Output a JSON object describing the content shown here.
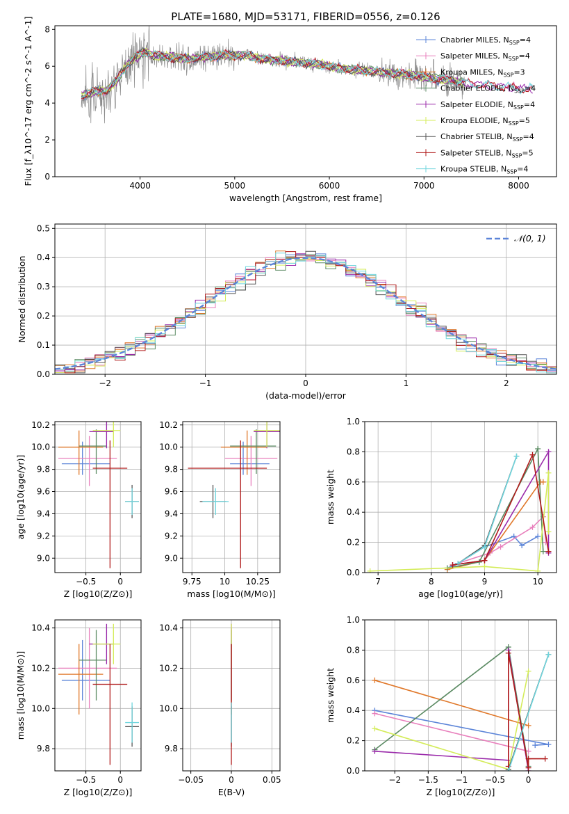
{
  "chart_data": [
    {
      "id": "spectrum",
      "type": "line",
      "title": "PLATE=1680, MJD=53171, FIBERID=0556, z=0.126",
      "xlabel": "wavelength [Angstrom, rest frame]",
      "ylabel": "Flux [f_λ10^-17 erg cm^-2 s^-1 A^-1]",
      "xlim": [
        3100,
        8400
      ],
      "ylim": [
        0,
        8.2
      ],
      "xticks": [
        4000,
        5000,
        6000,
        7000,
        8000
      ],
      "yticks": [
        0,
        2,
        4,
        6,
        8
      ],
      "grid": false,
      "legend_position": "top-right",
      "continuum_x": [
        3380,
        3500,
        3650,
        3750,
        3850,
        3950,
        4050,
        4150,
        4300,
        4500,
        4700,
        4900,
        5100,
        5300,
        5500,
        5700,
        5900,
        6100,
        6300,
        6500,
        6700,
        6900,
        7100,
        7300,
        7500,
        7700,
        7900,
        8100
      ],
      "continuum_y": [
        4.4,
        4.6,
        4.7,
        5.2,
        6.0,
        6.5,
        6.8,
        6.6,
        6.5,
        6.4,
        6.5,
        6.6,
        6.6,
        6.4,
        6.3,
        6.2,
        6.1,
        5.9,
        5.8,
        5.7,
        5.6,
        5.5,
        5.35,
        5.2,
        5.05,
        4.95,
        4.85,
        4.75
      ],
      "series": [
        {
          "name": "Chabrier MILES, N_SSP=4",
          "color": "#5b84d8"
        },
        {
          "name": "Salpeter MILES, N_SSP=4",
          "color": "#e87fbc"
        },
        {
          "name": "Kroupa MILES, N_SSP=3",
          "color": "#e0782a"
        },
        {
          "name": "Chabrier ELODIE, N_SSP=4",
          "color": "#5a8a62"
        },
        {
          "name": "Salpeter ELODIE, N_SSP=4",
          "color": "#9a2aaa"
        },
        {
          "name": "Kroupa ELODIE, N_SSP=5",
          "color": "#d4ec5a"
        },
        {
          "name": "Chabrier STELIB, N_SSP=4",
          "color": "#555555"
        },
        {
          "name": "Salpeter STELIB, N_SSP=5",
          "color": "#b01a1a"
        },
        {
          "name": "Kroupa STELIB, N_SSP=4",
          "color": "#6fd5dd"
        }
      ],
      "data_color": "#8a8a8a"
    },
    {
      "id": "residuals",
      "type": "line",
      "xlabel": "(data-model)/error",
      "ylabel": "Normed distribution",
      "xlim": [
        -2.5,
        2.5
      ],
      "ylim": [
        0,
        0.515
      ],
      "xticks": [
        -2,
        -1,
        0,
        1,
        2
      ],
      "yticks": [
        0.0,
        0.1,
        0.2,
        0.3,
        0.4,
        0.5
      ],
      "grid": true,
      "legend_position": "top-right",
      "reference": {
        "name": "𝒩(0, 1)",
        "color": "#5b84d8"
      },
      "bin_width": 0.1
    },
    {
      "id": "age-vs-Z",
      "type": "scatter",
      "xlabel": "Z [log10(Z/Z⊙)]",
      "ylabel": "age [log10(age/yr)]",
      "xlim": [
        -0.95,
        0.3
      ],
      "ylim": [
        8.87,
        10.23
      ],
      "xticks": [
        -0.5,
        0.0
      ],
      "yticks": [
        9.0,
        9.2,
        9.4,
        9.6,
        9.8,
        10.0,
        10.2
      ],
      "grid": true
    },
    {
      "id": "age-vs-mass",
      "type": "scatter",
      "xlabel": "mass [log10(M/M⊙)]",
      "ylabel": "",
      "xlim": [
        9.68,
        10.42
      ],
      "ylim": [
        8.87,
        10.23
      ],
      "xticks": [
        9.75,
        10.0,
        10.25
      ],
      "yticks": [
        9.0,
        9.2,
        9.4,
        9.6,
        9.8,
        10.0,
        10.2
      ],
      "grid": true
    },
    {
      "id": "weight-vs-age",
      "type": "line",
      "xlabel": "age [log10(age/yr)]",
      "ylabel": "mass weight",
      "xlim": [
        6.75,
        10.35
      ],
      "ylim": [
        0,
        1.0
      ],
      "xticks": [
        7,
        8,
        9,
        10
      ],
      "yticks": [
        0.0,
        0.2,
        0.4,
        0.6,
        0.8,
        1.0
      ],
      "grid": true
    },
    {
      "id": "mass-vs-Z",
      "type": "scatter",
      "xlabel": "Z [log10(Z/Z⊙)]",
      "ylabel": "mass [log10(M/M⊙)]",
      "xlim": [
        -0.95,
        0.3
      ],
      "ylim": [
        9.69,
        10.44
      ],
      "xticks": [
        -0.5,
        0.0
      ],
      "yticks": [
        9.8,
        10.0,
        10.2,
        10.4
      ],
      "grid": true
    },
    {
      "id": "mass-vs-ebv",
      "type": "scatter",
      "xlabel": "E(B-V)",
      "ylabel": "",
      "xlim": [
        -0.06,
        0.06
      ],
      "ylim": [
        9.69,
        10.44
      ],
      "xticks": [
        -0.05,
        0.0,
        0.05
      ],
      "yticks": [
        9.8,
        10.0,
        10.2,
        10.4
      ],
      "grid": true
    },
    {
      "id": "weight-vs-Z",
      "type": "line",
      "xlabel": "Z [log10(Z/Z⊙)]",
      "ylabel": "mass weight",
      "xlim": [
        -2.45,
        0.42
      ],
      "ylim": [
        0,
        1.0
      ],
      "xticks": [
        -2.0,
        -1.5,
        -1.0,
        -0.5,
        0.0
      ],
      "yticks": [
        0.0,
        0.2,
        0.4,
        0.6,
        0.8,
        1.0
      ],
      "grid": true
    }
  ],
  "fits": [
    {
      "color": "#5b84d8",
      "age": 9.85,
      "age_err": [
        0.1,
        0.2
      ],
      "Z": -0.55,
      "Z_err": [
        0.3,
        0.4
      ],
      "mass": 10.14,
      "mass_err": [
        0.1,
        0.2
      ],
      "ebv": 0.0,
      "w_age": [
        [
          8.3,
          0.03
        ],
        [
          8.5,
          0.06
        ],
        [
          9.0,
          0.17
        ],
        [
          9.55,
          0.24
        ],
        [
          9.7,
          0.18
        ],
        [
          10.0,
          0.24
        ]
      ],
      "w_Z": [
        [
          -2.3,
          0.4
        ],
        [
          0.3,
          0.175
        ],
        [
          0.1,
          0.17
        ]
      ]
    },
    {
      "color": "#e87fbc",
      "age": 9.9,
      "age_err": [
        0.25,
        0.2
      ],
      "Z": -0.45,
      "Z_err": [
        0.45,
        0.4
      ],
      "mass": 10.2,
      "mass_err": [
        0.2,
        0.2
      ],
      "ebv": 0.0,
      "w_age": [
        [
          8.4,
          0.05
        ],
        [
          9.1,
          0.13
        ],
        [
          9.3,
          0.17
        ],
        [
          9.9,
          0.3
        ],
        [
          10.1,
          0.37
        ],
        [
          10.15,
          0.2
        ]
      ],
      "w_Z": [
        [
          -2.3,
          0.38
        ],
        [
          0.0,
          0.13
        ]
      ]
    },
    {
      "color": "#e0782a",
      "age": 10.0,
      "age_err": [
        0.25,
        0.15
      ],
      "Z": -0.6,
      "Z_err": [
        0.3,
        0.35
      ],
      "mass": 10.17,
      "mass_err": [
        0.2,
        0.15
      ],
      "ebv": 0.0,
      "w_age": [
        [
          8.3,
          0.02
        ],
        [
          9.0,
          0.08
        ],
        [
          10.05,
          0.6
        ],
        [
          10.1,
          0.6
        ]
      ],
      "w_Z": [
        [
          -2.3,
          0.6
        ],
        [
          0.0,
          0.3
        ]
      ]
    },
    {
      "color": "#5a8a62",
      "age": 10.01,
      "age_err": [
        0.25,
        0.15
      ],
      "Z": -0.35,
      "Z_err": [
        0.25,
        0.15
      ],
      "mass": 10.24,
      "mass_err": [
        0.2,
        0.15
      ],
      "ebv": 0.0,
      "w_age": [
        [
          8.3,
          0.03
        ],
        [
          8.9,
          0.07
        ],
        [
          10.0,
          0.82
        ],
        [
          10.1,
          0.14
        ]
      ],
      "w_Z": [
        [
          -2.3,
          0.14
        ],
        [
          -0.3,
          0.82
        ],
        [
          0.0,
          0.03
        ]
      ]
    },
    {
      "color": "#9a2aaa",
      "age": 10.14,
      "age_err": [
        0.15,
        0.1
      ],
      "Z": -0.2,
      "Z_err": [
        0.25,
        0.1
      ],
      "mass": 10.32,
      "mass_err": [
        0.1,
        0.1
      ],
      "ebv": 0.0,
      "w_age": [
        [
          8.4,
          0.05
        ],
        [
          9.0,
          0.08
        ],
        [
          10.2,
          0.8
        ],
        [
          10.2,
          0.13
        ]
      ],
      "w_Z": [
        [
          -2.3,
          0.13
        ],
        [
          -0.3,
          0.07
        ],
        [
          -0.3,
          0.8
        ],
        [
          0.0,
          0.0
        ]
      ]
    },
    {
      "color": "#d4ec5a",
      "age": 10.15,
      "age_err": [
        0.15,
        0.1
      ],
      "Z": -0.1,
      "Z_err": [
        0.3,
        0.1
      ],
      "mass": 10.32,
      "mass_err": [
        0.1,
        0.1
      ],
      "ebv": 0.0,
      "w_age": [
        [
          6.85,
          0.01
        ],
        [
          9.0,
          0.04
        ],
        [
          10.0,
          0.01
        ],
        [
          10.2,
          0.66
        ],
        [
          10.2,
          0.27
        ]
      ],
      "w_Z": [
        [
          -2.3,
          0.28
        ],
        [
          -0.3,
          0.01
        ],
        [
          0.0,
          0.66
        ]
      ]
    },
    {
      "color": "#555555",
      "age": 9.51,
      "age_err": [
        0.15,
        0.15
      ],
      "Z": 0.17,
      "Z_err": [
        0.1,
        0.1
      ],
      "mass": 9.91,
      "mass_err": [
        0.1,
        0.1
      ],
      "ebv": 0.0,
      "w_age": [
        [
          8.5,
          0.06
        ],
        [
          9.0,
          0.18
        ],
        [
          9.6,
          0.77
        ]
      ],
      "w_Z": [
        [
          -0.3,
          0.01
        ],
        [
          0.3,
          0.77
        ]
      ]
    },
    {
      "color": "#b01a1a",
      "age": 9.81,
      "age_err": [
        0.9,
        0.25
      ],
      "Z": -0.15,
      "Z_err": [
        0.25,
        0.25
      ],
      "mass": 10.12,
      "mass_err": [
        0.4,
        0.2
      ],
      "ebv": 0.0,
      "w_age": [
        [
          8.4,
          0.05
        ],
        [
          9.0,
          0.08
        ],
        [
          9.9,
          0.78
        ],
        [
          10.2,
          0.14
        ]
      ],
      "w_Z": [
        [
          -0.3,
          0.03
        ],
        [
          -0.3,
          0.78
        ],
        [
          0.0,
          0.02
        ],
        [
          0.0,
          0.08
        ],
        [
          0.25,
          0.08
        ]
      ]
    },
    {
      "color": "#6fd5dd",
      "age": 9.51,
      "age_err": [
        0.12,
        0.12
      ],
      "Z": 0.17,
      "Z_err": [
        0.1,
        0.1
      ],
      "mass": 9.93,
      "mass_err": [
        0.1,
        0.1
      ],
      "ebv": 0.0,
      "w_age": [
        [
          8.5,
          0.06
        ],
        [
          9.0,
          0.17
        ],
        [
          9.6,
          0.77
        ]
      ],
      "w_Z": [
        [
          -0.3,
          0.0
        ],
        [
          0.3,
          0.77
        ]
      ]
    }
  ]
}
